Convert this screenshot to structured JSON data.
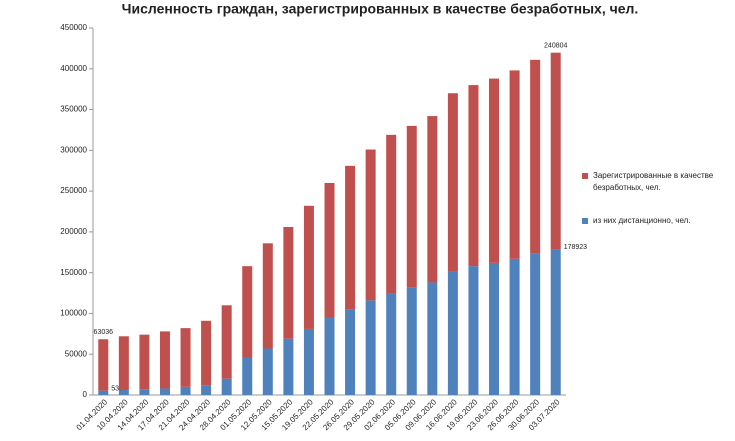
{
  "chart_data": {
    "type": "stacked_bar",
    "title": "Численность граждан, зарегистрированных в качестве безработных, чел.",
    "categories": [
      "01.04.2020",
      "10.04.2020",
      "14.04.2020",
      "17.04.2020",
      "21.04.2020",
      "24.04.2020",
      "28.04.2020",
      "01.05.2020",
      "12.05.2020",
      "15.05.2020",
      "19.05.2020",
      "22.05.2020",
      "26.05.2020",
      "29.05.2020",
      "02.06.2020",
      "05.06.2020",
      "09.06.2020",
      "16.06.2020",
      "19.06.2020",
      "23.06.2020",
      "26.06.2020",
      "30.06.2020",
      "03.07.2020"
    ],
    "series": [
      {
        "name": "из них дистанционно, чел.",
        "color": "#4f81bd",
        "values": [
          5318,
          6000,
          7000,
          8000,
          10000,
          12000,
          20000,
          46000,
          57000,
          69000,
          81000,
          95000,
          105000,
          116000,
          125000,
          132000,
          138000,
          152000,
          158000,
          162000,
          167000,
          174000,
          178923
        ]
      },
      {
        "name": "Зарегистрированные в качестве безработных, чел.",
        "color": "#c0504d",
        "values": [
          63036,
          66000,
          67000,
          70000,
          72000,
          79000,
          90000,
          112000,
          129000,
          137000,
          151000,
          165000,
          176000,
          185000,
          194000,
          198000,
          204000,
          218000,
          222000,
          226000,
          231000,
          237000,
          240804
        ]
      }
    ],
    "ylim": [
      0,
      450000
    ],
    "yticks": [
      0,
      50000,
      100000,
      150000,
      200000,
      250000,
      300000,
      350000,
      400000,
      450000
    ],
    "grid": false
  }
}
